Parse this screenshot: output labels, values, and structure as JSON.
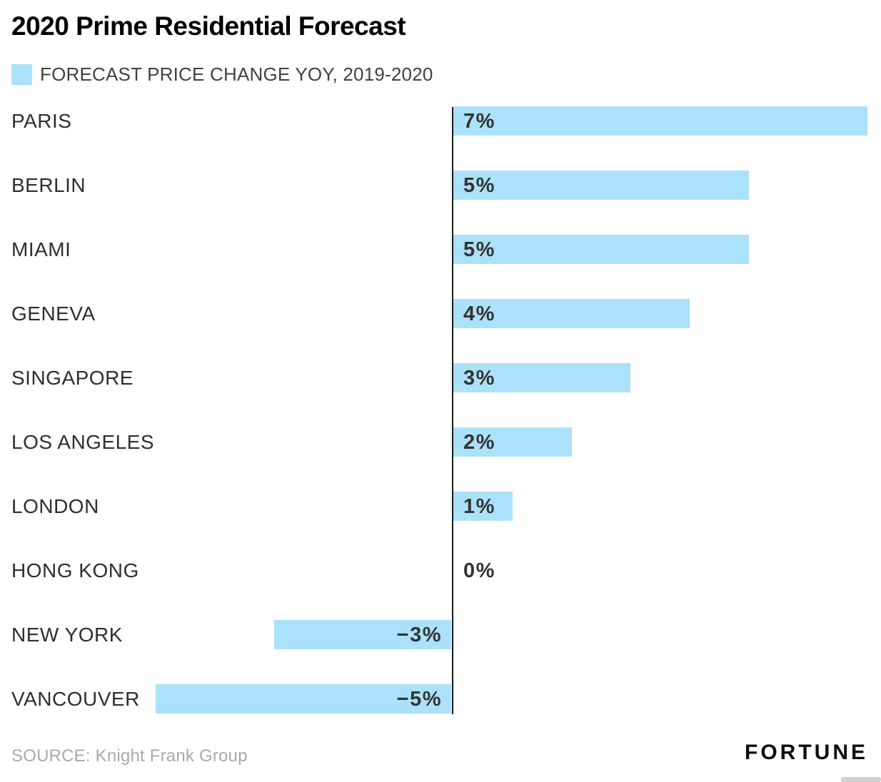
{
  "header": {
    "title": "2020 Prime Residential Forecast"
  },
  "legend": {
    "label": "FORECAST PRICE CHANGE YOY, 2019-2020",
    "swatch_color": "#ABE1FA"
  },
  "chart_data": {
    "type": "bar",
    "orientation": "horizontal",
    "title": "2020 Prime Residential Forecast",
    "legend_entries": [
      "FORECAST PRICE CHANGE YOY, 2019-2020"
    ],
    "legend_position": "top-left",
    "grid": false,
    "categories": [
      "PARIS",
      "BERLIN",
      "MIAMI",
      "GENEVA",
      "SINGAPORE",
      "LOS ANGELES",
      "LONDON",
      "HONG KONG",
      "NEW YORK",
      "VANCOUVER"
    ],
    "series": [
      {
        "name": "Forecast price change YoY, 2019-2020",
        "values": [
          7,
          5,
          5,
          4,
          3,
          2,
          1,
          0,
          -3,
          -5
        ]
      }
    ],
    "value_labels": [
      "7%",
      "5%",
      "5%",
      "4%",
      "3%",
      "2%",
      "1%",
      "0%",
      "−3%",
      "−5%"
    ],
    "xlabel": "",
    "ylabel": "",
    "xlim": [
      -5.1,
      7.05
    ],
    "baseline_axis_at": 0,
    "bar_color": "#ABE1FA",
    "axis_color": "#1a1a1a"
  },
  "footer": {
    "source": "SOURCE: Knight Frank Group",
    "brand": "FORTUNE"
  }
}
